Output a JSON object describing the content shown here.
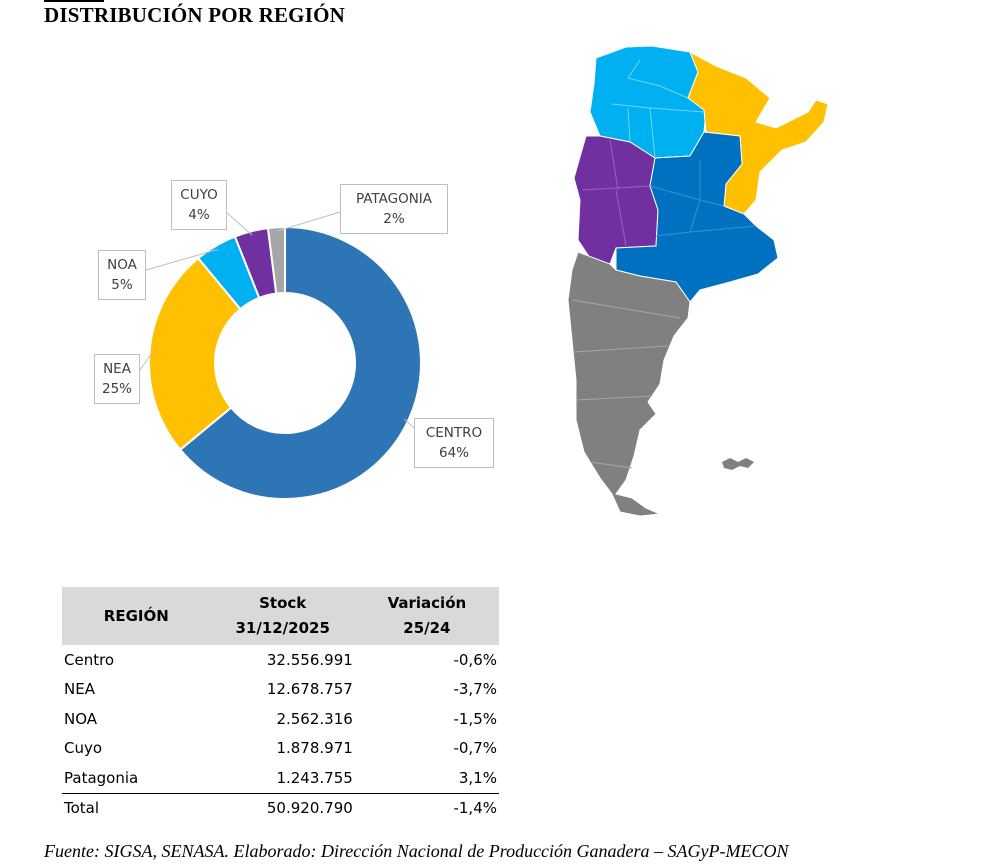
{
  "title": "DISTRIBUCIÓN POR REGIÓN",
  "chart_data": {
    "type": "pie",
    "variant": "donut",
    "categories": [
      "CENTRO",
      "NEA",
      "NOA",
      "CUYO",
      "PATAGONIA"
    ],
    "values": [
      64,
      25,
      5,
      4,
      2
    ],
    "percent_labels": [
      "64%",
      "25%",
      "5%",
      "4%",
      "2%"
    ],
    "colors": [
      "#2E75B6",
      "#FFC000",
      "#00B0F0",
      "#7030A0",
      "#A6A6A6"
    ],
    "order": "clockwise from top"
  },
  "map": {
    "region_colors": {
      "NOA": "#00B0F0",
      "NEA": "#FFC000",
      "Cuyo": "#7030A0",
      "Centro": "#0070C0",
      "Patagonia": "#808080"
    }
  },
  "table": {
    "headers": {
      "region": "REGIÓN",
      "stock_line1": "Stock",
      "stock_line2": "31/12/2025",
      "var_line1": "Variación",
      "var_line2": "25/24"
    },
    "rows": [
      {
        "region": "Centro",
        "stock": "32.556.991",
        "variation": "-0,6%"
      },
      {
        "region": "NEA",
        "stock": "12.678.757",
        "variation": "-3,7%"
      },
      {
        "region": "NOA",
        "stock": "2.562.316",
        "variation": "-1,5%"
      },
      {
        "region": "Cuyo",
        "stock": "1.878.971",
        "variation": "-0,7%"
      },
      {
        "region": "Patagonia",
        "stock": "1.243.755",
        "variation": "3,1%"
      }
    ],
    "total": {
      "region": "Total",
      "stock": "50.920.790",
      "variation": "-1,4%"
    }
  },
  "source": "Fuente: SIGSA, SENASA. Elaborado: Dirección Nacional de Producción Ganadera – SAGyP-MECON"
}
